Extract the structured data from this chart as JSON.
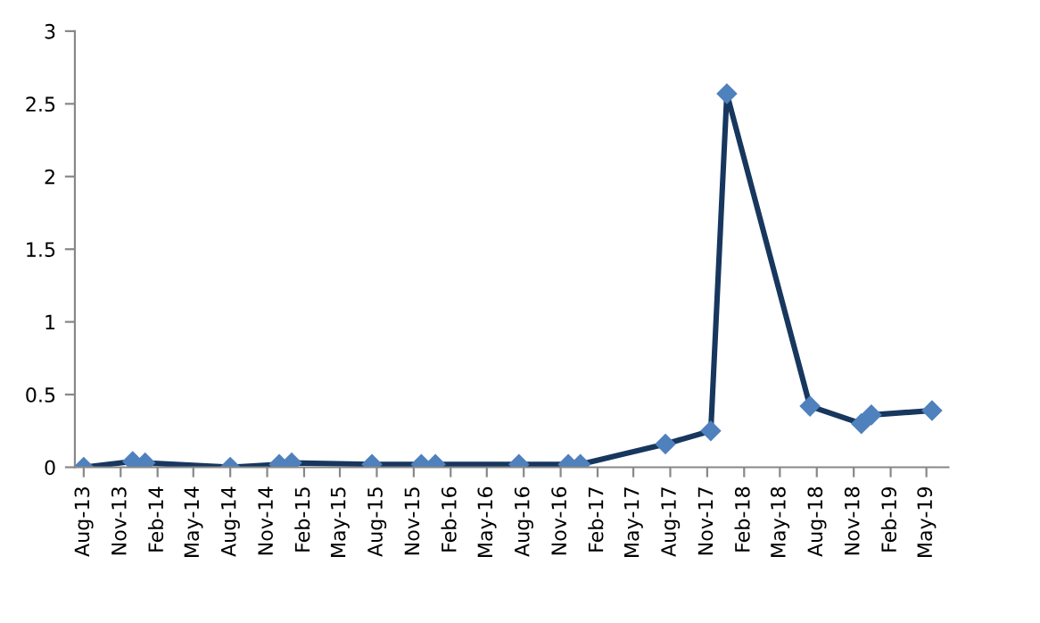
{
  "chart_data": {
    "type": "line",
    "marker": "diamond",
    "line_style": "solid",
    "grid": false,
    "legend": false,
    "x": [
      "2013-08-01",
      "2013-12-01",
      "2014-01-01",
      "2014-08-01",
      "2014-12-01",
      "2015-01-01",
      "2015-07-20",
      "2015-11-20",
      "2015-12-25",
      "2016-07-20",
      "2016-11-20",
      "2016-12-20",
      "2017-07-20",
      "2017-11-10",
      "2017-12-20",
      "2018-07-15",
      "2018-11-20",
      "2018-12-15",
      "2019-05-15"
    ],
    "series": [
      {
        "color": "#17375e",
        "values": [
          0,
          0.04,
          0.03,
          0,
          0.02,
          0.03,
          0.02,
          0.02,
          0.02,
          0.02,
          0.02,
          0.02,
          0.16,
          0.25,
          2.57,
          0.42,
          0.3,
          0.36,
          0.39
        ]
      }
    ],
    "xlim": [
      "2013-07-10",
      "2019-06-25"
    ],
    "xticks": [
      {
        "value": "2013-08-01",
        "label": "Aug-13"
      },
      {
        "value": "2013-11-01",
        "label": "Nov-13"
      },
      {
        "value": "2014-02-01",
        "label": "Feb-14"
      },
      {
        "value": "2014-05-01",
        "label": "May-14"
      },
      {
        "value": "2014-08-01",
        "label": "Aug-14"
      },
      {
        "value": "2014-11-01",
        "label": "Nov-14"
      },
      {
        "value": "2015-02-01",
        "label": "Feb-15"
      },
      {
        "value": "2015-05-01",
        "label": "May-15"
      },
      {
        "value": "2015-08-01",
        "label": "Aug-15"
      },
      {
        "value": "2015-11-01",
        "label": "Nov-15"
      },
      {
        "value": "2016-02-01",
        "label": "Feb-16"
      },
      {
        "value": "2016-05-01",
        "label": "May-16"
      },
      {
        "value": "2016-08-01",
        "label": "Aug-16"
      },
      {
        "value": "2016-11-01",
        "label": "Nov-16"
      },
      {
        "value": "2017-02-01",
        "label": "Feb-17"
      },
      {
        "value": "2017-05-01",
        "label": "May-17"
      },
      {
        "value": "2017-08-01",
        "label": "Aug-17"
      },
      {
        "value": "2017-11-01",
        "label": "Nov-17"
      },
      {
        "value": "2018-02-01",
        "label": "Feb-18"
      },
      {
        "value": "2018-05-01",
        "label": "May-18"
      },
      {
        "value": "2018-08-01",
        "label": "Aug-18"
      },
      {
        "value": "2018-11-01",
        "label": "Nov-18"
      },
      {
        "value": "2019-02-01",
        "label": "Feb-19"
      },
      {
        "value": "2019-05-01",
        "label": "May-19"
      }
    ],
    "ylim": [
      0,
      3
    ],
    "yticks": [
      0,
      0.5,
      1,
      1.5,
      2,
      2.5,
      3
    ]
  }
}
